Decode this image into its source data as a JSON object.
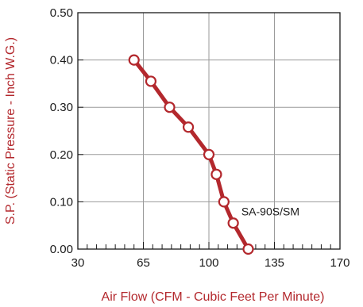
{
  "chart_data": {
    "type": "line",
    "title": "",
    "xlabel": "Air Flow (CFM - Cubic Feet Per Minute)",
    "ylabel": "S.P. (Static Pressure - Inch W.G.)",
    "xlim": [
      30,
      170
    ],
    "ylim": [
      0,
      0.5
    ],
    "x_ticks": [
      "30",
      "65",
      "100",
      "135",
      "170"
    ],
    "y_ticks": [
      "0.00",
      "0.10",
      "0.20",
      "0.30",
      "0.40",
      "0.50"
    ],
    "grid": true,
    "series": [
      {
        "name": "SA-90S/SM",
        "color": "#b3282d",
        "x": [
          60,
          69,
          79,
          89,
          100,
          104,
          108,
          113,
          121
        ],
        "y": [
          0.4,
          0.355,
          0.3,
          0.258,
          0.2,
          0.158,
          0.1,
          0.055,
          0.0
        ]
      }
    ]
  },
  "colors": {
    "curve": "#b3282d",
    "axis_title": "#b3282d",
    "grid": "#9a9a9a",
    "axis": "#1a1a1a"
  }
}
